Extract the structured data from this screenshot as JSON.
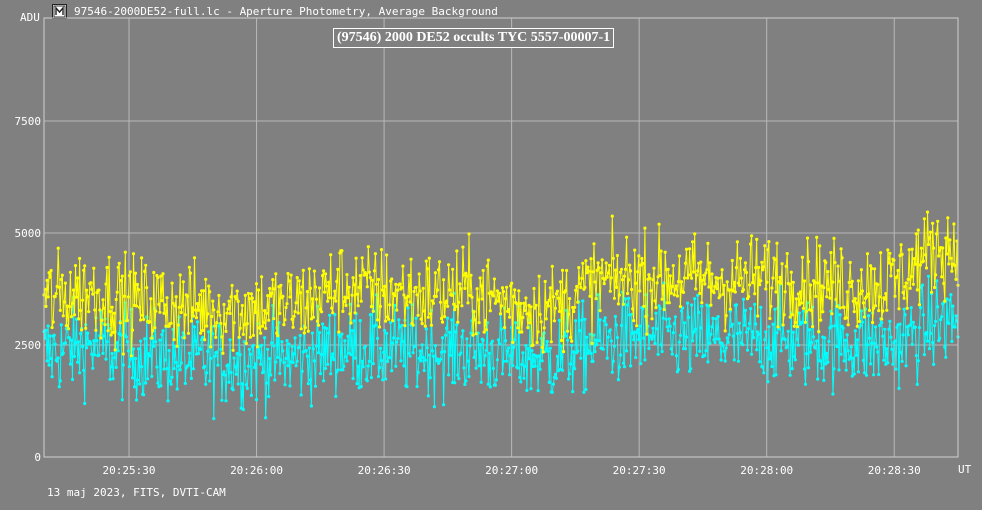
{
  "window": {
    "title": "97546-2000DE52-full.lc - Aperture Photometry, Average Background",
    "icon": "app-icon"
  },
  "footer": {
    "text": "13 maj 2023, FITS, DVTI-CAM"
  },
  "chart_data": {
    "type": "line",
    "title": "(97546) 2000 DE52 occults TYC 5557-00007-1",
    "ylabel": "ADU",
    "xlabel": "UT",
    "xlim": [
      "20:25:10",
      "20:28:45"
    ],
    "ylim": [
      0,
      9800
    ],
    "y_ticks": [
      {
        "value": 0,
        "label": "0"
      },
      {
        "value": 2500,
        "label": "2500"
      },
      {
        "value": 5000,
        "label": "5000"
      },
      {
        "value": 7500,
        "label": "7500"
      }
    ],
    "x_ticks": [
      {
        "value": "20:25:30",
        "label": "20:25:30"
      },
      {
        "value": "20:26:00",
        "label": "20:26:00"
      },
      {
        "value": "20:26:30",
        "label": "20:26:30"
      },
      {
        "value": "20:27:00",
        "label": "20:27:00"
      },
      {
        "value": "20:27:30",
        "label": "20:27:30"
      },
      {
        "value": "20:28:00",
        "label": "20:28:00"
      },
      {
        "value": "20:28:30",
        "label": "20:28:30"
      }
    ],
    "grid": true,
    "series": [
      {
        "color": "#00ffff",
        "x": [
          "20:25:10",
          "20:25:20",
          "20:25:30",
          "20:25:40",
          "20:25:50",
          "20:26:00",
          "20:26:10",
          "20:26:20",
          "20:26:30",
          "20:26:40",
          "20:26:50",
          "20:27:00",
          "20:27:10",
          "20:27:20",
          "20:27:30",
          "20:27:40",
          "20:27:50",
          "20:28:00",
          "20:28:10",
          "20:28:20",
          "20:28:30",
          "20:28:40",
          "20:28:45"
        ],
        "values": [
          2300,
          2500,
          2300,
          2200,
          2100,
          2150,
          2200,
          2450,
          2400,
          2350,
          2400,
          2250,
          2200,
          2550,
          2700,
          2650,
          2600,
          2650,
          2550,
          2550,
          2500,
          3000,
          3050
        ]
      },
      {
        "color": "#ffff00",
        "x": [
          "20:25:10",
          "20:25:20",
          "20:25:30",
          "20:25:40",
          "20:25:50",
          "20:26:00",
          "20:26:10",
          "20:26:20",
          "20:26:30",
          "20:26:40",
          "20:26:50",
          "20:27:00",
          "20:27:10",
          "20:27:20",
          "20:27:30",
          "20:27:40",
          "20:27:50",
          "20:28:00",
          "20:28:10",
          "20:28:20",
          "20:28:30",
          "20:28:40",
          "20:28:45"
        ],
        "values": [
          3500,
          3700,
          3500,
          3400,
          3300,
          3300,
          3400,
          3800,
          3700,
          3600,
          3700,
          3400,
          3300,
          3900,
          4000,
          4000,
          3900,
          4000,
          3900,
          3800,
          3900,
          4700,
          4600
        ]
      }
    ]
  }
}
